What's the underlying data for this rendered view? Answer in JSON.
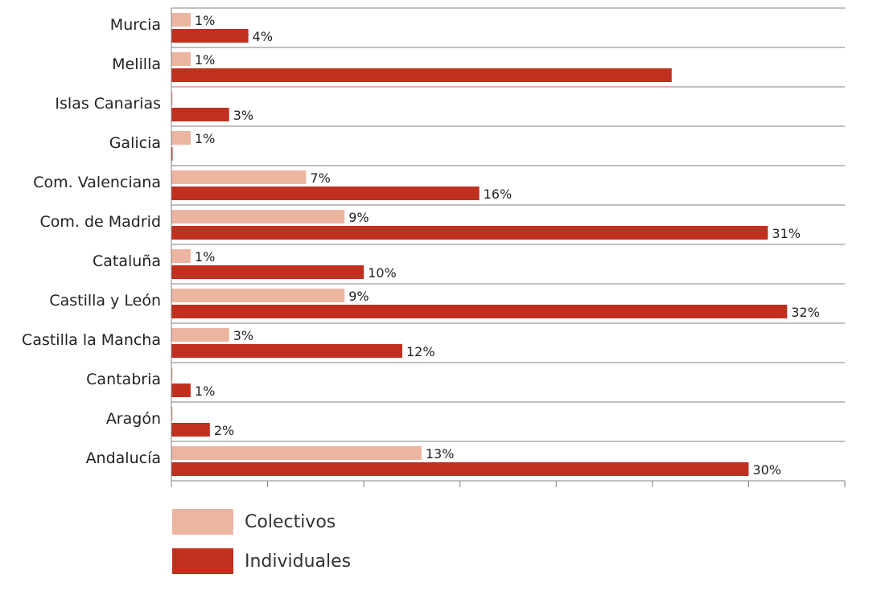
{
  "chart_data": {
    "type": "bar",
    "orientation": "horizontal",
    "categories": [
      "Murcia",
      "Melilla",
      "Islas Canarias",
      "Galicia",
      "Com. Valenciana",
      "Com. de Madrid",
      "Cataluña",
      "Castilla y León",
      "Castilla la Mancha",
      "Cantabria",
      "Aragón",
      "Andalucía"
    ],
    "series": [
      {
        "name": "Colectivos",
        "color": "#ecb59f",
        "values": [
          1,
          1,
          0,
          1,
          7,
          9,
          1,
          9,
          3,
          0,
          0,
          13
        ],
        "labels": [
          "1%",
          "1%",
          "",
          "1%",
          "7%",
          "9%",
          "1%",
          "9%",
          "3%",
          "",
          "",
          "13%"
        ]
      },
      {
        "name": "Individuales",
        "color": "#c0301f",
        "values": [
          4,
          26,
          3,
          0,
          16,
          31,
          10,
          32,
          12,
          1,
          2,
          30
        ],
        "labels": [
          "4%",
          "",
          "3%",
          "",
          "16%",
          "31%",
          "10%",
          "32%",
          "12%",
          "1%",
          "2%",
          "30%"
        ]
      }
    ],
    "xlim": [
      0,
      35
    ],
    "xticks": [
      0,
      5,
      10,
      15,
      20,
      25,
      30,
      35
    ],
    "xlabel": "",
    "ylabel": "",
    "title": "",
    "grid": "horizontal",
    "legend": "bottom-left"
  }
}
